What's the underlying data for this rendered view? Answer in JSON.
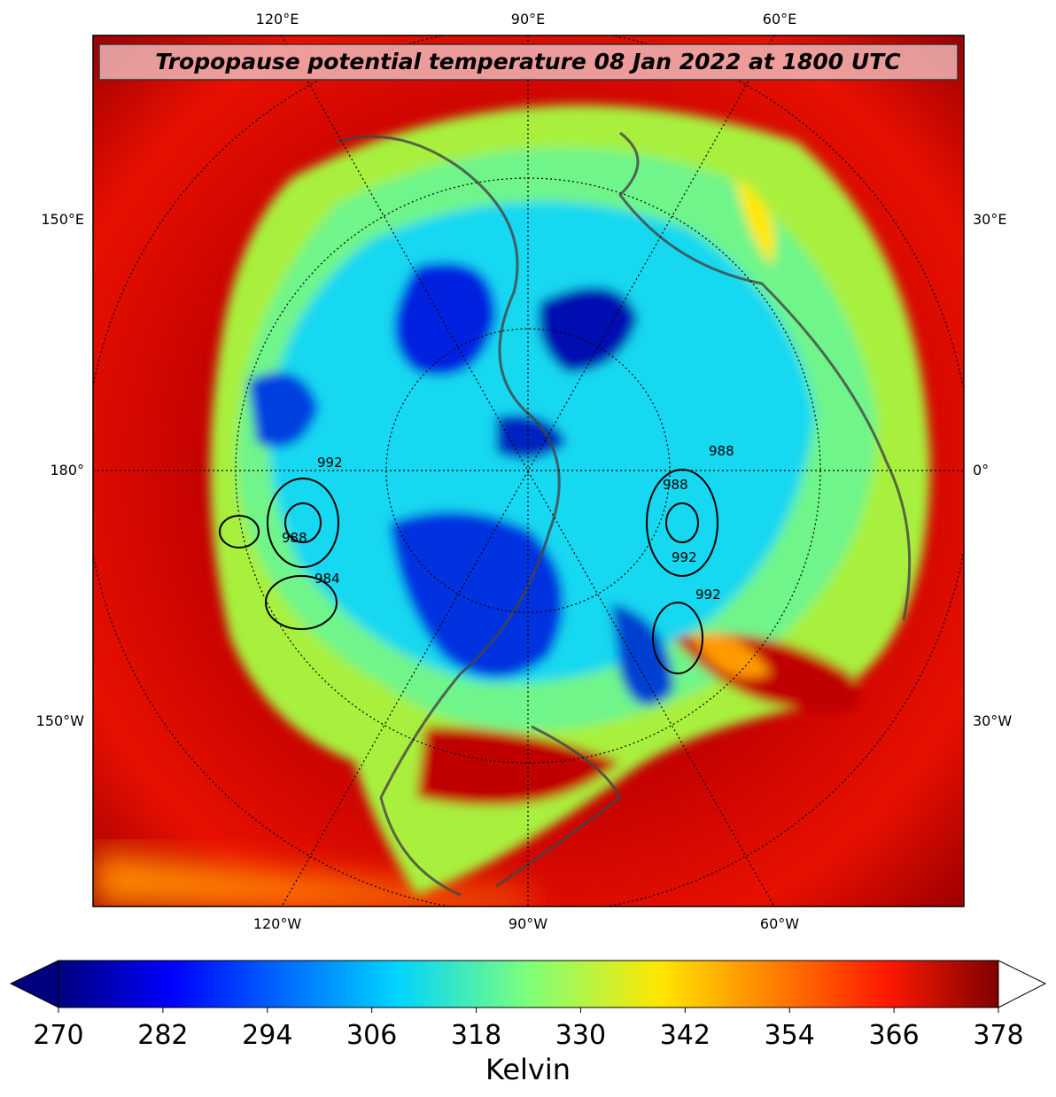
{
  "title": "Tropopause potential temperature 08 Jan 2022 at 1800 UTC",
  "lon_labels": {
    "top": [
      "120°E",
      "90°E",
      "60°E"
    ],
    "bottom": [
      "120°W",
      "90°W",
      "60°W"
    ],
    "left": [
      "150°E",
      "180°",
      "150°W"
    ],
    "right": [
      "30°E",
      "0°",
      "30°W"
    ]
  },
  "contour_labels": [
    "992",
    "988",
    "984",
    "988",
    "992",
    "992",
    "988"
  ],
  "colorbar": {
    "label": "Kelvin",
    "lim": [
      270,
      378
    ],
    "ticks": [
      270,
      282,
      294,
      306,
      318,
      330,
      342,
      354,
      366,
      378
    ]
  }
}
